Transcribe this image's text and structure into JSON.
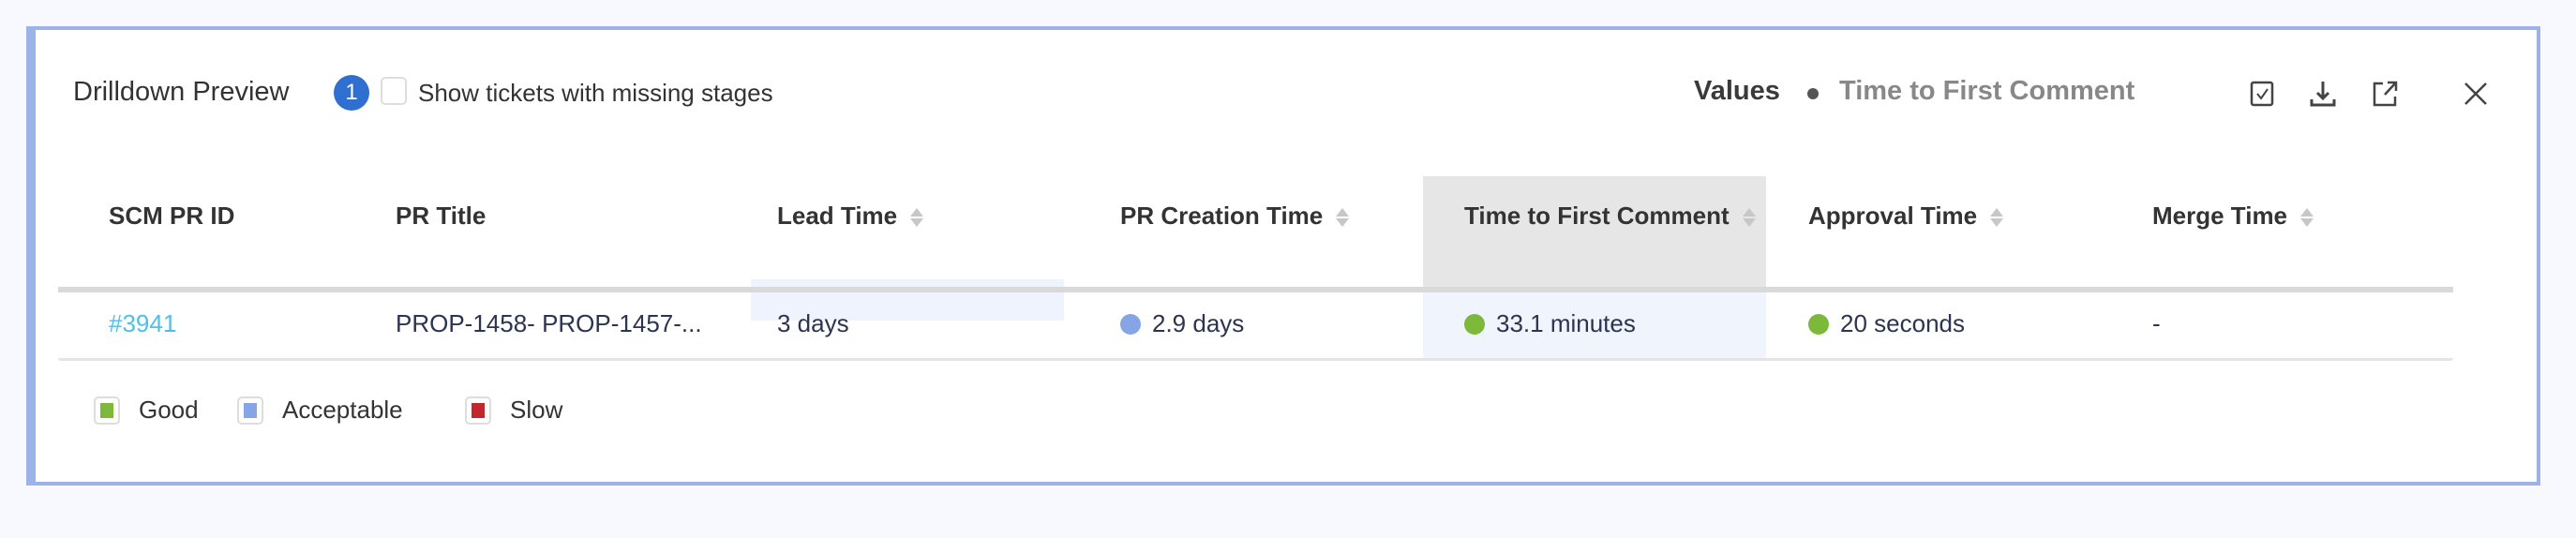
{
  "header": {
    "title": "Drilldown Preview",
    "badge_count": "1",
    "missing_stages_label": "Show tickets with missing stages",
    "missing_stages_checked": false,
    "values_label": "Values",
    "metric_label": "Time to First Comment",
    "icons": [
      "select-columns-icon",
      "download-icon",
      "open-external-icon",
      "close-icon"
    ]
  },
  "table": {
    "columns": [
      "SCM PR ID",
      "PR Title",
      "Lead Time",
      "PR Creation Time",
      "Time to First Comment",
      "Approval Time",
      "Merge Time"
    ],
    "highlighted_column": "Time to First Comment",
    "rows": [
      {
        "id": "#3941",
        "title": "PROP-1458- PROP-1457-...",
        "lead_time": "3 days",
        "pr_creation_time": "2.9 days",
        "pr_creation_status": "acceptable",
        "ttfc": "33.1 minutes",
        "ttfc_status": "good",
        "approval_time": "20 seconds",
        "approval_status": "good",
        "merge_time": "-"
      }
    ]
  },
  "legend": [
    {
      "label": "Good",
      "color": "#7cb83a"
    },
    {
      "label": "Acceptable",
      "color": "#86a5e6"
    },
    {
      "label": "Slow",
      "color": "#c1272d"
    }
  ]
}
